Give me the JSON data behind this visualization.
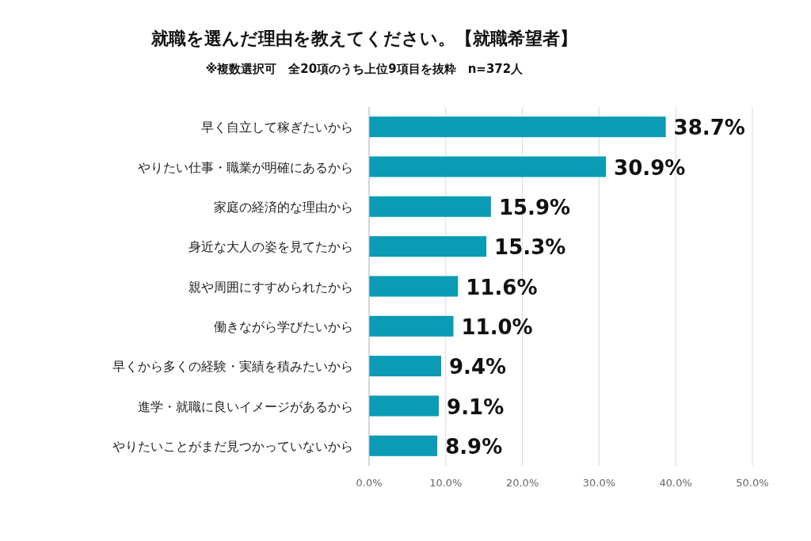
{
  "chart_data": {
    "type": "bar",
    "orientation": "horizontal",
    "title": "就職を選んだ理由を教えてください。【就職希望者】",
    "subtitle": "※複数選択可　全20項のうち上位9項目を抜粋　n=372人",
    "categories": [
      "早く自立して稼ぎたいから",
      "やりたい仕事・職業が明確にあるから",
      "家庭の経済的な理由から",
      "身近な大人の姿を見てたから",
      "親や周囲にすすめられたから",
      "働きながら学びたいから",
      "早くから多くの経験・実績を積みたいから",
      "進学・就職に良いイメージがあるから",
      "やりたいことがまだ見つかっていないから"
    ],
    "values": [
      38.7,
      30.9,
      15.9,
      15.3,
      11.6,
      11.0,
      9.4,
      9.1,
      8.9
    ],
    "value_labels": [
      "38.7%",
      "30.9%",
      "15.9%",
      "15.3%",
      "11.6%",
      "11.0%",
      "9.4%",
      "9.1%",
      "8.9%"
    ],
    "color": "#0a9bb5",
    "xlim": [
      0,
      50
    ],
    "xticks": [
      {
        "value": 0,
        "label": "0.0%"
      },
      {
        "value": 10,
        "label": "10.0%"
      },
      {
        "value": 20,
        "label": "20.0%"
      },
      {
        "value": 30,
        "label": "30.0%"
      },
      {
        "value": 40,
        "label": "40.0%"
      },
      {
        "value": 50,
        "label": "50.0%"
      }
    ],
    "grid": "x"
  }
}
